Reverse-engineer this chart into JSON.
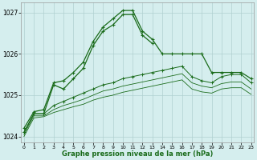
{
  "x": [
    0,
    1,
    2,
    3,
    4,
    5,
    6,
    7,
    8,
    9,
    10,
    11,
    12,
    13,
    14,
    15,
    16,
    17,
    18,
    19,
    20,
    21,
    22,
    23
  ],
  "line1": [
    1024.2,
    1024.6,
    1024.65,
    1025.3,
    1025.35,
    1025.55,
    1025.8,
    1026.3,
    1026.65,
    1026.85,
    1027.05,
    1027.05,
    1026.55,
    1026.35,
    1026.0,
    1026.0,
    1026.0,
    1026.0,
    1026.0,
    1025.55,
    1025.55,
    1025.55,
    1025.55,
    1025.4
  ],
  "line2": [
    1024.1,
    1024.55,
    1024.55,
    1025.25,
    1025.15,
    1025.4,
    1025.65,
    1026.2,
    1026.55,
    1026.7,
    1026.95,
    1026.95,
    1026.45,
    1026.25,
    null,
    null,
    null,
    null,
    null,
    null,
    null,
    null,
    null,
    null
  ],
  "line3": [
    1024.1,
    1024.55,
    1024.55,
    1024.75,
    1024.85,
    1024.95,
    1025.05,
    1025.15,
    1025.25,
    1025.3,
    1025.4,
    1025.45,
    1025.5,
    1025.55,
    1025.6,
    1025.65,
    1025.7,
    1025.45,
    1025.35,
    1025.3,
    1025.45,
    1025.5,
    1025.5,
    1025.3
  ],
  "line4": [
    1024.05,
    1024.5,
    1024.5,
    1024.65,
    1024.75,
    1024.82,
    1024.9,
    1025.0,
    1025.1,
    1025.15,
    1025.22,
    1025.27,
    1025.32,
    1025.37,
    1025.42,
    1025.47,
    1025.52,
    1025.3,
    1025.22,
    1025.18,
    1025.28,
    1025.32,
    1025.32,
    1025.15
  ],
  "line5": [
    1024.0,
    1024.45,
    1024.48,
    1024.58,
    1024.65,
    1024.72,
    1024.78,
    1024.88,
    1024.95,
    1025.0,
    1025.07,
    1025.12,
    1025.17,
    1025.22,
    1025.27,
    1025.32,
    1025.37,
    1025.15,
    1025.08,
    1025.05,
    1025.15,
    1025.18,
    1025.18,
    1025.02
  ],
  "ylim": [
    1023.85,
    1027.25
  ],
  "yticks": [
    1024,
    1025,
    1026,
    1027
  ],
  "xticks": [
    0,
    1,
    2,
    3,
    4,
    5,
    6,
    7,
    8,
    9,
    10,
    11,
    12,
    13,
    14,
    15,
    16,
    17,
    18,
    19,
    20,
    21,
    22,
    23
  ],
  "line_color": "#1a6b1a",
  "bg_color": "#d5eeee",
  "grid_color": "#b0d0d0",
  "xlabel": "Graphe pression niveau de la mer (hPa)",
  "xlabel_color": "#1a6b1a"
}
